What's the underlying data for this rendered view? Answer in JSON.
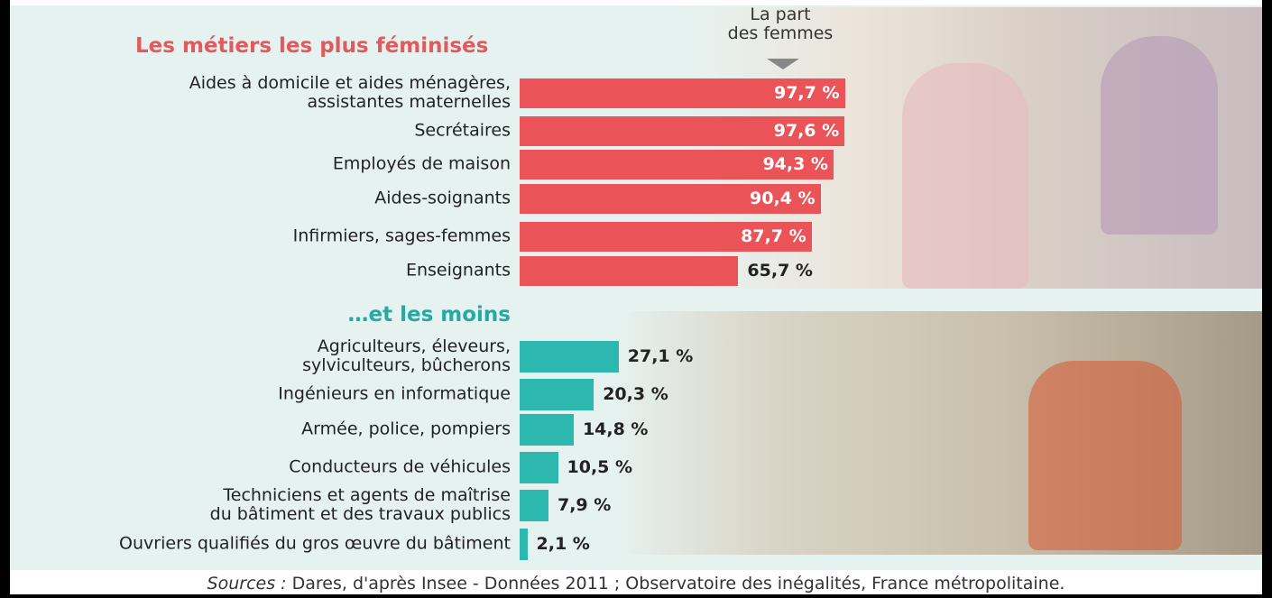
{
  "chart_data": [
    {
      "type": "bar",
      "orientation": "horizontal",
      "title": "Les métiers les plus féminisés",
      "annotation": "La part\ndes femmes",
      "categories": [
        "Aides à domicile et aides ménagères,\nassistantes maternelles",
        "Secrétaires",
        "Employés de maison",
        "Aides-soignants",
        "Infirmiers, sages-femmes",
        "Enseignants"
      ],
      "values": [
        97.7,
        97.6,
        94.3,
        90.4,
        87.7,
        65.7
      ],
      "value_labels": [
        "97,7 %",
        "97,6 %",
        "94,3 %",
        "90,4 %",
        "87,7 %",
        "65,7 %"
      ],
      "color": "#ea5358",
      "title_color": "#e05a5e",
      "xlim": [
        0,
        100
      ]
    },
    {
      "type": "bar",
      "orientation": "horizontal",
      "title": "…et les moins",
      "categories": [
        "Agriculteurs, éleveurs,\nsylviculteurs, bûcherons",
        "Ingénieurs en informatique",
        "Armée, police, pompiers",
        "Conducteurs de véhicules",
        "Techniciens et agents de maîtrise\ndu bâtiment et des travaux publics",
        "Ouvriers qualifiés du gros œuvre du bâtiment"
      ],
      "values": [
        27.1,
        20.3,
        14.8,
        10.5,
        7.9,
        2.1
      ],
      "value_labels": [
        "27,1 %",
        "20,3 %",
        "14,8 %",
        "10,5 %",
        "7,9 %",
        "2,1 %"
      ],
      "color": "#2db8af",
      "title_color": "#25aaa3",
      "xlim": [
        0,
        100
      ]
    }
  ],
  "source": {
    "label": "Sources :",
    "text": "Dares, d'après Insee - Données 2011 ; Observatoire des inégalités, France métropolitaine."
  }
}
